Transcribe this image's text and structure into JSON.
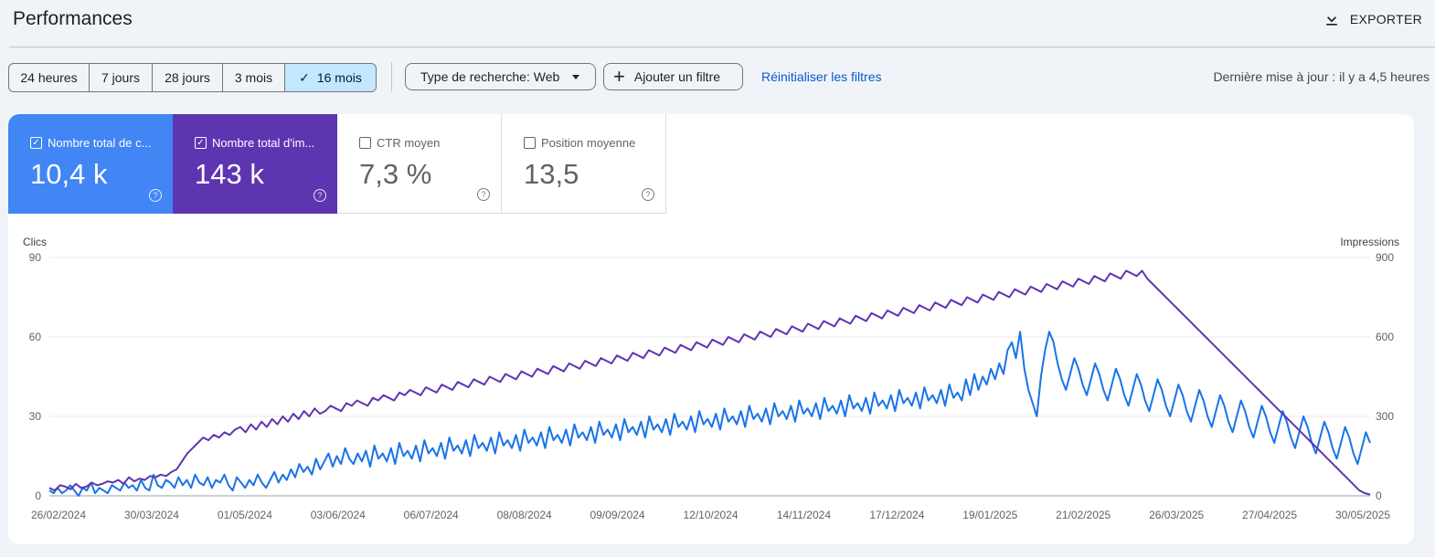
{
  "header": {
    "title": "Performances",
    "export_label": "EXPORTER"
  },
  "filters": {
    "ranges": [
      {
        "label": "24 heures",
        "active": false
      },
      {
        "label": "7 jours",
        "active": false
      },
      {
        "label": "28 jours",
        "active": false
      },
      {
        "label": "3 mois",
        "active": false
      },
      {
        "label": "16 mois",
        "active": true
      }
    ],
    "search_type": "Type de recherche: Web",
    "add_filter": "Ajouter un filtre",
    "reset": "Réinitialiser les filtres",
    "last_update": "Dernière mise à jour : il y a 4,5 heures"
  },
  "metrics": [
    {
      "label": "Nombre total de c...",
      "value": "10,4 k",
      "checked": true,
      "color": "#4285f4"
    },
    {
      "label": "Nombre total d'im...",
      "value": "143 k",
      "checked": true,
      "color": "#5e35b1"
    },
    {
      "label": "CTR moyen",
      "value": "7,3 %",
      "checked": false
    },
    {
      "label": "Position moyenne",
      "value": "13,5",
      "checked": false
    }
  ],
  "chart_data": {
    "type": "line",
    "left_axis_label": "Clics",
    "right_axis_label": "Impressions",
    "left_ylim": [
      0,
      90
    ],
    "right_ylim": [
      0,
      900
    ],
    "left_ticks": [
      "0",
      "30",
      "60",
      "90"
    ],
    "right_ticks": [
      "0",
      "300",
      "600",
      "900"
    ],
    "x_tick_labels": [
      "26/02/2024",
      "30/03/2024",
      "01/05/2024",
      "03/06/2024",
      "06/07/2024",
      "08/08/2024",
      "09/09/2024",
      "12/10/2024",
      "14/11/2024",
      "17/12/2024",
      "19/01/2025",
      "21/02/2025",
      "26/03/2025",
      "27/04/2025",
      "30/05/2025"
    ],
    "grid": true,
    "series": [
      {
        "axis": "left",
        "color": "#1a73e8",
        "values": [
          2,
          1,
          3,
          1,
          2,
          4,
          2,
          0,
          3,
          2,
          5,
          1,
          3,
          2,
          1,
          4,
          3,
          2,
          5,
          3,
          4,
          2,
          6,
          3,
          2,
          8,
          4,
          3,
          6,
          5,
          3,
          7,
          4,
          6,
          3,
          8,
          5,
          4,
          7,
          3,
          6,
          5,
          8,
          4,
          2,
          7,
          5,
          3,
          6,
          4,
          8,
          5,
          3,
          6,
          9,
          5,
          8,
          6,
          10,
          7,
          12,
          9,
          11,
          8,
          14,
          10,
          13,
          16,
          11,
          15,
          12,
          18,
          14,
          12,
          16,
          13,
          17,
          11,
          19,
          14,
          16,
          13,
          18,
          12,
          20,
          15,
          17,
          14,
          19,
          13,
          21,
          16,
          18,
          15,
          20,
          14,
          22,
          17,
          19,
          16,
          21,
          15,
          23,
          18,
          20,
          17,
          22,
          16,
          24,
          19,
          21,
          18,
          23,
          17,
          25,
          20,
          22,
          19,
          24,
          18,
          26,
          21,
          23,
          20,
          25,
          19,
          27,
          22,
          24,
          21,
          26,
          20,
          28,
          23,
          25,
          22,
          27,
          21,
          29,
          24,
          26,
          23,
          28,
          22,
          30,
          25,
          27,
          24,
          29,
          23,
          31,
          26,
          28,
          25,
          30,
          24,
          32,
          27,
          29,
          26,
          31,
          25,
          33,
          28,
          30,
          27,
          32,
          26,
          34,
          29,
          31,
          28,
          33,
          27,
          35,
          30,
          32,
          29,
          34,
          28,
          36,
          31,
          33,
          30,
          35,
          29,
          37,
          32,
          34,
          31,
          36,
          30,
          38,
          33,
          35,
          32,
          37,
          31,
          39,
          34,
          36,
          33,
          38,
          32,
          40,
          35,
          37,
          34,
          39,
          33,
          41,
          36,
          38,
          35,
          40,
          34,
          42,
          37,
          39,
          36,
          44,
          38,
          46,
          40,
          45,
          42,
          48,
          44,
          50,
          46,
          55,
          58,
          52,
          62,
          48,
          40,
          35,
          30,
          45,
          55,
          62,
          58,
          50,
          44,
          40,
          46,
          52,
          48,
          42,
          38,
          44,
          50,
          46,
          40,
          36,
          42,
          48,
          44,
          38,
          34,
          40,
          46,
          42,
          36,
          32,
          38,
          44,
          40,
          34,
          30,
          36,
          42,
          38,
          32,
          28,
          34,
          40,
          36,
          30,
          26,
          32,
          38,
          34,
          28,
          24,
          30,
          36,
          32,
          26,
          22,
          28,
          34,
          30,
          24,
          20,
          26,
          32,
          28,
          22,
          18,
          24,
          30,
          26,
          20,
          16,
          22,
          28,
          24,
          18,
          14,
          20,
          26,
          22,
          16,
          12,
          18,
          24,
          20
        ]
      },
      {
        "axis": "right",
        "color": "#5e35b1",
        "values": [
          30,
          20,
          40,
          35,
          25,
          45,
          30,
          35,
          50,
          40,
          45,
          55,
          50,
          60,
          45,
          70,
          55,
          65,
          60,
          75,
          70,
          80,
          75,
          90,
          100,
          130,
          160,
          180,
          200,
          220,
          210,
          230,
          220,
          240,
          230,
          250,
          260,
          240,
          270,
          250,
          280,
          260,
          290,
          270,
          300,
          280,
          310,
          290,
          320,
          300,
          330,
          310,
          320,
          340,
          330,
          320,
          350,
          340,
          360,
          350,
          340,
          370,
          360,
          380,
          370,
          360,
          390,
          380,
          400,
          390,
          380,
          410,
          400,
          390,
          420,
          410,
          400,
          430,
          420,
          410,
          440,
          430,
          420,
          450,
          440,
          430,
          460,
          450,
          440,
          470,
          460,
          450,
          480,
          470,
          460,
          490,
          480,
          470,
          500,
          490,
          480,
          510,
          500,
          490,
          520,
          510,
          500,
          530,
          520,
          510,
          540,
          530,
          520,
          550,
          540,
          530,
          560,
          550,
          540,
          570,
          560,
          550,
          580,
          570,
          560,
          590,
          580,
          570,
          600,
          590,
          580,
          610,
          600,
          590,
          620,
          610,
          600,
          630,
          620,
          610,
          640,
          630,
          620,
          650,
          640,
          630,
          660,
          650,
          640,
          670,
          660,
          650,
          680,
          670,
          660,
          690,
          680,
          670,
          700,
          690,
          680,
          710,
          700,
          690,
          720,
          710,
          700,
          730,
          720,
          710,
          740,
          730,
          720,
          750,
          740,
          730,
          760,
          750,
          740,
          770,
          760,
          750,
          780,
          770,
          760,
          790,
          780,
          770,
          800,
          790,
          780,
          810,
          800,
          790,
          820,
          810,
          800,
          830,
          820,
          810,
          840,
          830,
          820,
          850,
          840,
          830,
          850,
          820,
          800,
          780,
          760,
          740,
          720,
          700,
          680,
          660,
          640,
          620,
          600,
          580,
          560,
          540,
          520,
          500,
          480,
          460,
          440,
          420,
          400,
          380,
          360,
          340,
          320,
          300,
          280,
          260,
          240,
          220,
          200,
          180,
          160,
          140,
          120,
          100,
          80,
          60,
          40,
          20,
          10,
          5
        ]
      }
    ]
  }
}
